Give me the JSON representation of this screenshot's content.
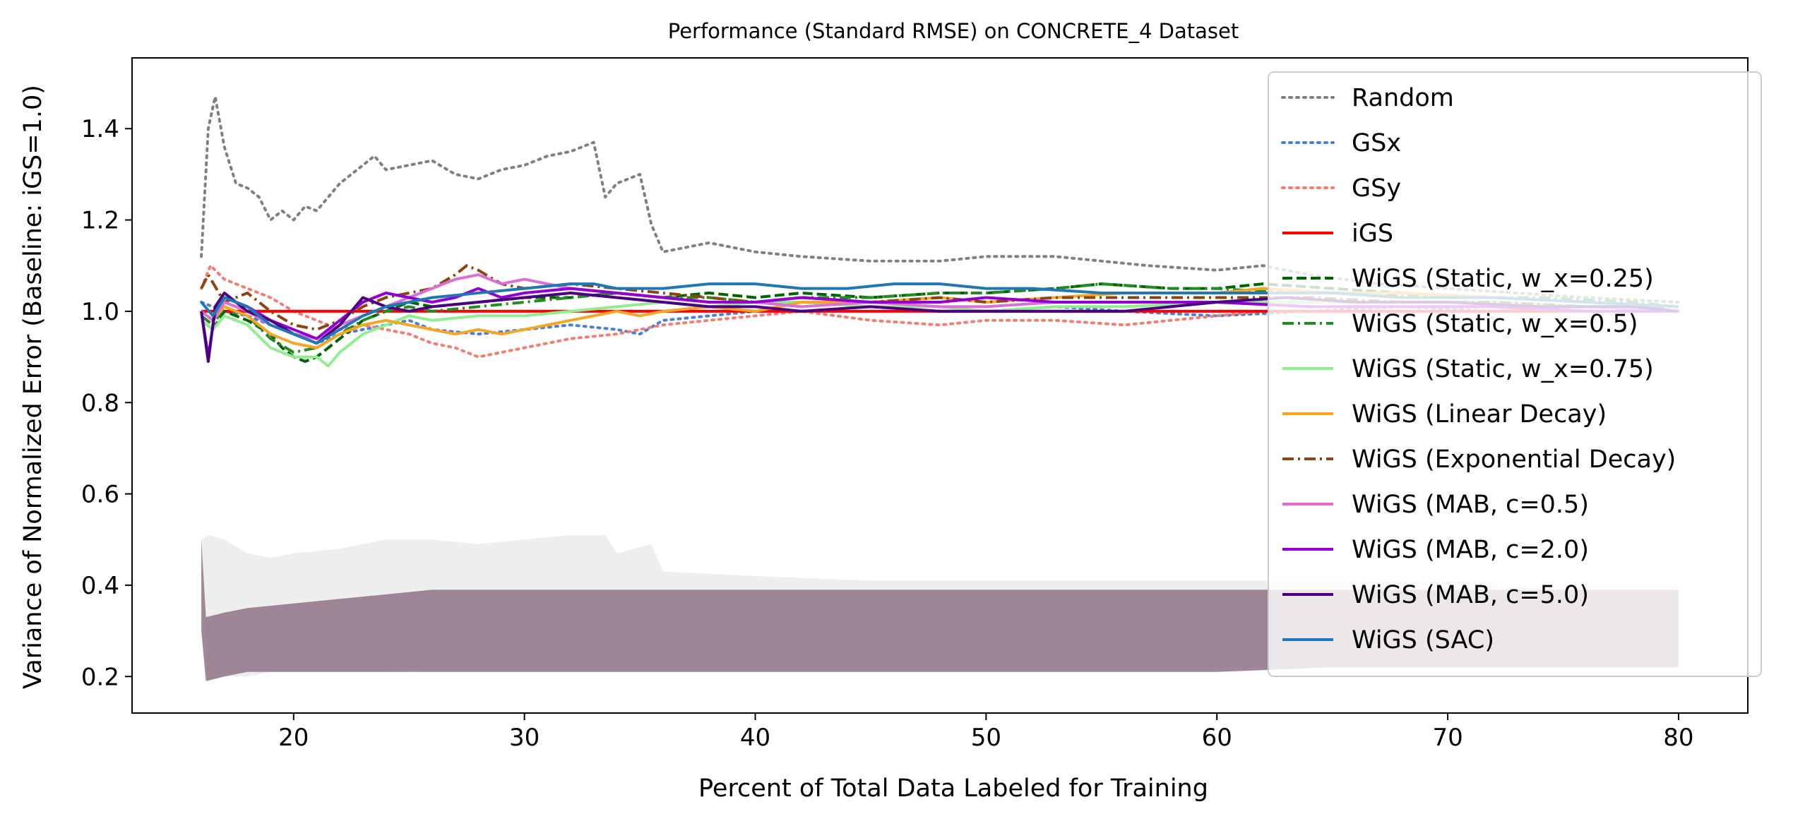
{
  "chart_data": {
    "type": "line",
    "title": "Performance (Standard RMSE) on CONCRETE_4 Dataset",
    "xlabel": "Percent of Total Data Labeled for Training",
    "ylabel": "Variance of Normalized Error (Baseline: iGS=1.0)",
    "xlim": [
      13,
      83
    ],
    "ylim": [
      0.12,
      1.555
    ],
    "xticks": [
      20,
      30,
      40,
      50,
      60,
      70,
      80
    ],
    "yticks": [
      0.2,
      0.4,
      0.6,
      0.8,
      1.0,
      1.2,
      1.4
    ],
    "xtick_labels": [
      "20",
      "30",
      "40",
      "50",
      "60",
      "70",
      "80"
    ],
    "ytick_labels": [
      "0.2",
      "0.4",
      "0.6",
      "0.8",
      "1.0",
      "1.2",
      "1.4"
    ],
    "grid": false,
    "legend_position": "top-right",
    "series": [
      {
        "name": "Random",
        "color": "#808080",
        "dash": "dotted",
        "x": [
          16,
          16.3,
          16.6,
          17,
          17.5,
          18,
          18.5,
          19,
          19.5,
          20,
          20.5,
          21,
          21.5,
          22,
          22.5,
          23,
          23.5,
          24,
          25,
          26,
          27,
          28,
          29,
          30,
          31,
          32,
          33,
          33.5,
          34,
          35,
          35.5,
          36,
          37,
          38,
          40,
          42,
          45,
          48,
          50,
          53,
          55,
          57,
          60,
          62,
          64,
          67,
          70,
          73,
          76,
          80
        ],
        "y": [
          1.12,
          1.4,
          1.47,
          1.36,
          1.28,
          1.27,
          1.25,
          1.2,
          1.22,
          1.2,
          1.23,
          1.22,
          1.25,
          1.28,
          1.3,
          1.32,
          1.34,
          1.31,
          1.32,
          1.33,
          1.3,
          1.29,
          1.31,
          1.32,
          1.34,
          1.35,
          1.37,
          1.25,
          1.28,
          1.3,
          1.19,
          1.13,
          1.14,
          1.15,
          1.13,
          1.12,
          1.11,
          1.11,
          1.12,
          1.12,
          1.11,
          1.1,
          1.09,
          1.1,
          1.08,
          1.06,
          1.05,
          1.04,
          1.03,
          1.02
        ]
      },
      {
        "name": "GSx",
        "color": "#4a7fd6",
        "dash": "dotted",
        "x": [
          16,
          17,
          18,
          19,
          20,
          21,
          22,
          23,
          24,
          25,
          26,
          28,
          30,
          32,
          34,
          35,
          36,
          38,
          40,
          42,
          45,
          48,
          50,
          53,
          56,
          60,
          64,
          68,
          72,
          76,
          80
        ],
        "y": [
          1.02,
          1.0,
          0.99,
          0.97,
          0.95,
          0.93,
          0.95,
          0.96,
          0.97,
          0.98,
          0.96,
          0.95,
          0.96,
          0.97,
          0.96,
          0.95,
          0.98,
          0.99,
          1.0,
          1.0,
          1.01,
          1.0,
          1.0,
          1.01,
          1.0,
          0.99,
          1.0,
          1.01,
          1.0,
          1.01,
          1.0
        ]
      },
      {
        "name": "GSy",
        "color": "#f47c70",
        "dash": "dotted",
        "x": [
          16,
          16.4,
          17,
          18,
          19,
          20,
          21,
          22,
          23,
          24,
          25,
          26,
          27,
          28,
          29,
          30,
          32,
          34,
          36,
          38,
          40,
          42,
          45,
          48,
          50,
          53,
          56,
          58,
          60,
          62,
          65,
          68,
          72,
          76,
          80
        ],
        "y": [
          1.05,
          1.1,
          1.07,
          1.05,
          1.03,
          1.0,
          0.98,
          0.96,
          0.97,
          0.96,
          0.95,
          0.93,
          0.92,
          0.9,
          0.91,
          0.92,
          0.94,
          0.95,
          0.97,
          0.98,
          0.99,
          1.0,
          0.98,
          0.97,
          0.98,
          0.98,
          0.97,
          0.98,
          0.99,
          1.0,
          1.0,
          1.0,
          1.0,
          1.01,
          1.0
        ]
      },
      {
        "name": "iGS",
        "color": "#ff0000",
        "dash": "solid",
        "x": [
          16,
          80
        ],
        "y": [
          1.0,
          1.0
        ]
      },
      {
        "name": "WiGS (Static, w_x=0.25)",
        "color": "#006400",
        "dash": "dashed",
        "x": [
          16,
          16.5,
          17,
          18,
          19,
          19.5,
          20,
          20.5,
          21,
          22,
          23,
          24,
          25,
          26,
          28,
          30,
          32,
          34,
          36,
          38,
          40,
          42,
          45,
          48,
          50,
          53,
          55,
          58,
          60,
          62,
          65,
          68,
          72,
          76,
          80
        ],
        "y": [
          0.98,
          0.96,
          1.0,
          0.98,
          0.95,
          0.92,
          0.9,
          0.89,
          0.9,
          0.94,
          0.98,
          1.0,
          1.02,
          1.01,
          1.02,
          1.03,
          1.03,
          1.04,
          1.03,
          1.04,
          1.03,
          1.04,
          1.03,
          1.04,
          1.04,
          1.05,
          1.06,
          1.05,
          1.05,
          1.06,
          1.05,
          1.04,
          1.03,
          1.02,
          1.01
        ]
      },
      {
        "name": "WiGS (Static, w_x=0.5)",
        "color": "#228b22",
        "dash": "dashdot",
        "x": [
          16,
          16.5,
          17,
          18,
          19,
          20,
          21,
          22,
          23,
          24,
          25,
          26,
          28,
          30,
          32,
          34,
          36,
          38,
          40,
          42,
          45,
          48,
          50,
          53,
          55,
          58,
          60,
          63,
          66,
          70,
          74,
          78,
          80
        ],
        "y": [
          0.99,
          0.97,
          1.01,
          0.99,
          0.94,
          0.91,
          0.92,
          0.95,
          0.98,
          1.0,
          1.01,
          1.0,
          1.01,
          1.02,
          1.03,
          1.04,
          1.03,
          1.03,
          1.02,
          1.03,
          1.03,
          1.04,
          1.04,
          1.05,
          1.06,
          1.05,
          1.05,
          1.04,
          1.04,
          1.03,
          1.03,
          1.02,
          1.01
        ]
      },
      {
        "name": "WiGS (Static, w_x=0.75)",
        "color": "#90ee90",
        "dash": "solid",
        "x": [
          16,
          16.5,
          17,
          18,
          19,
          20,
          21,
          21.5,
          22,
          23,
          24,
          25,
          26,
          28,
          30,
          32,
          34,
          36,
          38,
          40,
          42,
          45,
          48,
          50,
          53,
          56,
          60,
          64,
          68,
          72,
          76,
          80
        ],
        "y": [
          0.98,
          0.96,
          0.99,
          0.97,
          0.92,
          0.9,
          0.9,
          0.88,
          0.91,
          0.95,
          0.97,
          0.99,
          0.98,
          0.99,
          0.99,
          1.0,
          1.01,
          1.02,
          1.01,
          1.02,
          1.02,
          1.01,
          1.01,
          1.0,
          1.01,
          1.01,
          1.02,
          1.02,
          1.02,
          1.02,
          1.01,
          1.01
        ]
      },
      {
        "name": "WiGS (Linear Decay)",
        "color": "#f5a623",
        "dash": "solid",
        "x": [
          16,
          16.5,
          17,
          18,
          19,
          20,
          21,
          22,
          23,
          24,
          25,
          26,
          27,
          28,
          29,
          30,
          32,
          34,
          35,
          36,
          38,
          40,
          42,
          45,
          48,
          50,
          53,
          56,
          60,
          62,
          65,
          68,
          72,
          76,
          80
        ],
        "y": [
          1.0,
          0.98,
          1.01,
          0.99,
          0.95,
          0.93,
          0.92,
          0.95,
          0.97,
          0.98,
          0.97,
          0.96,
          0.95,
          0.96,
          0.95,
          0.96,
          0.98,
          1.0,
          0.99,
          1.0,
          1.01,
          1.0,
          1.02,
          1.02,
          1.03,
          1.02,
          1.03,
          1.04,
          1.04,
          1.05,
          1.04,
          1.04,
          1.03,
          1.02,
          1.01
        ]
      },
      {
        "name": "WiGS (Exponential Decay)",
        "color": "#8b4513",
        "dash": "dashdot",
        "x": [
          16,
          16.3,
          17,
          18,
          19,
          20,
          21,
          22,
          23,
          24,
          25,
          26,
          27,
          27.5,
          28,
          29,
          30,
          32,
          34,
          36,
          38,
          40,
          42,
          45,
          48,
          50,
          53,
          56,
          60,
          64,
          68,
          72,
          76,
          80
        ],
        "y": [
          1.05,
          1.08,
          1.02,
          1.04,
          1.0,
          0.97,
          0.96,
          0.98,
          1.01,
          1.03,
          1.04,
          1.05,
          1.08,
          1.1,
          1.09,
          1.06,
          1.05,
          1.06,
          1.05,
          1.04,
          1.03,
          1.02,
          1.03,
          1.02,
          1.03,
          1.02,
          1.03,
          1.03,
          1.03,
          1.03,
          1.02,
          1.02,
          1.01,
          1.01
        ]
      },
      {
        "name": "WiGS (MAB, c=0.5)",
        "color": "#da70d6",
        "dash": "solid",
        "x": [
          16,
          16.5,
          17,
          18,
          19,
          20,
          21,
          22,
          23,
          24,
          25,
          26,
          27,
          28,
          29,
          30,
          32,
          34,
          36,
          38,
          40,
          42,
          45,
          48,
          50,
          53,
          56,
          60,
          64,
          68,
          72,
          76,
          80
        ],
        "y": [
          1.0,
          0.98,
          1.02,
          1.0,
          0.97,
          0.95,
          0.94,
          0.97,
          0.99,
          1.01,
          1.03,
          1.05,
          1.07,
          1.08,
          1.06,
          1.07,
          1.05,
          1.04,
          1.03,
          1.02,
          1.02,
          1.01,
          1.02,
          1.01,
          1.01,
          1.02,
          1.02,
          1.02,
          1.01,
          1.01,
          1.01,
          1.0,
          1.0
        ]
      },
      {
        "name": "WiGS (MAB, c=2.0)",
        "color": "#9400d3",
        "dash": "solid",
        "x": [
          16,
          16.3,
          16.6,
          17,
          18,
          19,
          20,
          21,
          22,
          23,
          24,
          25,
          26,
          27,
          28,
          29,
          30,
          32,
          34,
          36,
          38,
          40,
          42,
          45,
          48,
          50,
          53,
          56,
          60,
          64,
          68,
          72,
          76,
          80
        ],
        "y": [
          1.0,
          0.9,
          1.0,
          1.03,
          1.01,
          0.98,
          0.96,
          0.94,
          0.98,
          1.02,
          1.04,
          1.03,
          1.02,
          1.03,
          1.05,
          1.03,
          1.04,
          1.05,
          1.04,
          1.03,
          1.02,
          1.02,
          1.03,
          1.02,
          1.02,
          1.03,
          1.02,
          1.02,
          1.02,
          1.01,
          1.01,
          1.01,
          1.0,
          1.0
        ]
      },
      {
        "name": "WiGS (MAB, c=5.0)",
        "color": "#4b0082",
        "dash": "solid",
        "x": [
          16,
          16.3,
          16.6,
          17,
          18,
          19,
          20,
          21,
          22,
          23,
          24,
          25,
          26,
          28,
          30,
          32,
          34,
          36,
          38,
          40,
          42,
          45,
          48,
          50,
          53,
          56,
          58,
          60,
          63,
          66,
          70,
          74,
          78,
          80
        ],
        "y": [
          1.0,
          0.89,
          1.01,
          1.04,
          1.0,
          0.98,
          0.95,
          0.93,
          0.97,
          1.03,
          1.01,
          1.0,
          1.01,
          1.02,
          1.03,
          1.04,
          1.03,
          1.02,
          1.01,
          1.01,
          1.0,
          1.01,
          1.0,
          1.0,
          1.0,
          1.0,
          1.01,
          1.02,
          1.03,
          1.02,
          1.02,
          1.01,
          1.01,
          1.0
        ]
      },
      {
        "name": "WiGS (SAC)",
        "color": "#1f77b4",
        "dash": "solid",
        "x": [
          16,
          16.5,
          17,
          18,
          19,
          20,
          21,
          22,
          23,
          24,
          25,
          26,
          28,
          30,
          32,
          33,
          34,
          36,
          38,
          40,
          42,
          44,
          46,
          48,
          50,
          52,
          55,
          58,
          60,
          62,
          65,
          68,
          72,
          76,
          80
        ],
        "y": [
          1.02,
          0.99,
          1.03,
          1.01,
          0.97,
          0.95,
          0.93,
          0.96,
          0.99,
          1.01,
          1.02,
          1.03,
          1.04,
          1.05,
          1.06,
          1.06,
          1.05,
          1.05,
          1.06,
          1.06,
          1.05,
          1.05,
          1.06,
          1.06,
          1.05,
          1.05,
          1.04,
          1.04,
          1.04,
          1.04,
          1.04,
          1.03,
          1.03,
          1.02,
          1.01
        ]
      }
    ],
    "bands": [
      {
        "name": "Random",
        "color": "#cfcfcf",
        "opacity": 0.35,
        "x": [
          16,
          16.3,
          17,
          18,
          19,
          20,
          22,
          24,
          26,
          28,
          30,
          32,
          33.5,
          34,
          35.5,
          36,
          40,
          45,
          50,
          55,
          60,
          65,
          70,
          75,
          80
        ],
        "upper": [
          0.5,
          0.51,
          0.5,
          0.47,
          0.46,
          0.47,
          0.48,
          0.5,
          0.5,
          0.49,
          0.5,
          0.51,
          0.51,
          0.47,
          0.49,
          0.43,
          0.42,
          0.41,
          0.41,
          0.41,
          0.41,
          0.41,
          0.41,
          0.4,
          0.4
        ],
        "lower": [
          0.48,
          0.19,
          0.2,
          0.2,
          0.21,
          0.21,
          0.21,
          0.21,
          0.22,
          0.22,
          0.22,
          0.22,
          0.22,
          0.22,
          0.22,
          0.22,
          0.22,
          0.22,
          0.22,
          0.22,
          0.22,
          0.22,
          0.22,
          0.23,
          0.23
        ]
      },
      {
        "name": "WiGS bands",
        "color": "#8a6a80",
        "opacity": 0.8,
        "x": [
          16,
          16.2,
          17,
          18,
          20,
          22,
          24,
          26,
          28,
          30,
          35,
          40,
          45,
          50,
          55,
          60,
          65,
          70,
          75,
          80
        ],
        "upper": [
          0.5,
          0.33,
          0.34,
          0.35,
          0.36,
          0.37,
          0.38,
          0.39,
          0.39,
          0.39,
          0.39,
          0.39,
          0.39,
          0.39,
          0.39,
          0.39,
          0.39,
          0.39,
          0.39,
          0.39
        ],
        "lower": [
          0.3,
          0.19,
          0.2,
          0.21,
          0.21,
          0.21,
          0.21,
          0.21,
          0.21,
          0.21,
          0.21,
          0.21,
          0.21,
          0.21,
          0.21,
          0.21,
          0.22,
          0.22,
          0.22,
          0.22
        ]
      }
    ]
  }
}
